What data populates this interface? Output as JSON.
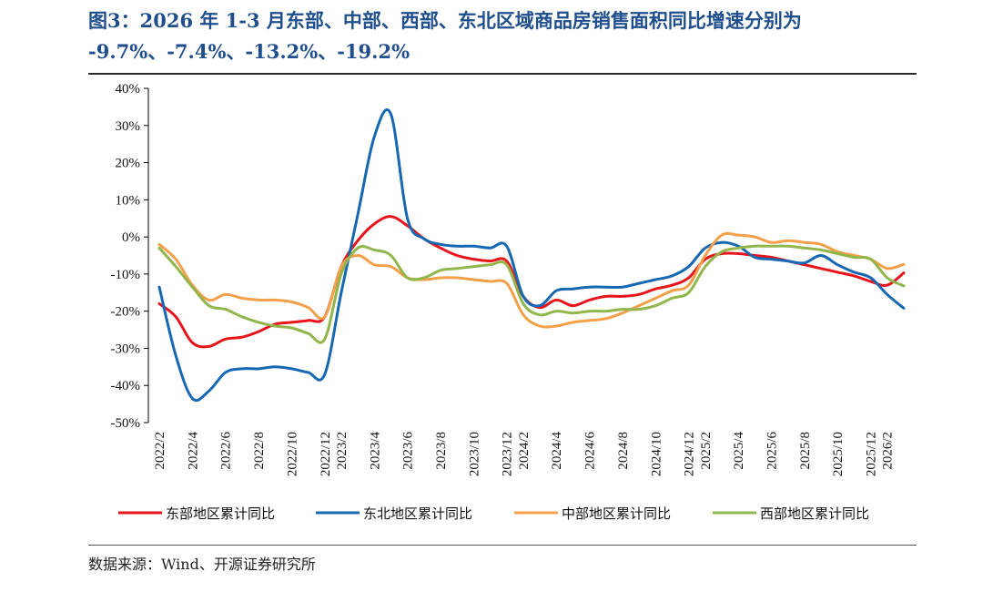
{
  "figure": {
    "title_line1": "图3：2026 年 1-3 月东部、中部、西部、东北区域商品房销售面积同比增速分别为",
    "title_line2": "-9.7%、-7.4%、-13.2%、-19.2%",
    "source": "数据来源：Wind、开源证券研究所"
  },
  "chart_data": {
    "type": "line",
    "title": "2026 年 1-3 月东部、中部、西部、东北区域商品房销售面积同比增速",
    "xlabel": "",
    "ylabel": "",
    "ylim": [
      -50,
      40
    ],
    "y_ticks": [
      40,
      30,
      20,
      10,
      0,
      -10,
      -20,
      -30,
      -40,
      -50
    ],
    "y_tick_labels": [
      "40%",
      "30%",
      "20%",
      "10%",
      "0%",
      "-10%",
      "-20%",
      "-30%",
      "-40%",
      "-50%"
    ],
    "x": [
      "2022/2",
      "2022/3",
      "2022/4",
      "2022/5",
      "2022/6",
      "2022/7",
      "2022/8",
      "2022/9",
      "2022/10",
      "2022/11",
      "2022/12",
      "2023/2",
      "2023/3",
      "2023/4",
      "2023/5",
      "2023/6",
      "2023/7",
      "2023/8",
      "2023/9",
      "2023/10",
      "2023/11",
      "2023/12",
      "2024/2",
      "2024/3",
      "2024/4",
      "2024/5",
      "2024/6",
      "2024/7",
      "2024/8",
      "2024/9",
      "2024/10",
      "2024/11",
      "2024/12",
      "2025/2",
      "2025/3",
      "2025/4",
      "2025/5",
      "2025/6",
      "2025/7",
      "2025/8",
      "2025/9",
      "2025/10",
      "2025/11",
      "2025/12",
      "2026/2",
      "2026/3"
    ],
    "x_tick_labels": [
      "2022/2",
      "2022/4",
      "2022/6",
      "2022/8",
      "2022/10",
      "2022/12",
      "2023/2",
      "2023/4",
      "2023/6",
      "2023/8",
      "2023/10",
      "2023/12",
      "2024/2",
      "2024/4",
      "2024/6",
      "2024/8",
      "2024/10",
      "2024/12",
      "2025/2",
      "2025/4",
      "2025/6",
      "2025/8",
      "2025/10",
      "2025/12",
      "2026/2"
    ],
    "legend_position": "bottom",
    "grid": false,
    "series": [
      {
        "name": "东部地区累计同比",
        "color": "#e8141b",
        "values": [
          -18,
          -21.5,
          -28.5,
          -29.5,
          -27.5,
          -27,
          -25.5,
          -23.5,
          -23,
          -22.5,
          -21.5,
          -8,
          -1,
          3.5,
          5.5,
          3,
          -0.5,
          -3,
          -5,
          -6,
          -6.5,
          -6.5,
          -16,
          -19,
          -17,
          -18.5,
          -17,
          -16,
          -16,
          -15.5,
          -14,
          -13,
          -11,
          -6,
          -4.5,
          -4.5,
          -5,
          -5.5,
          -6.5,
          -7.5,
          -8.5,
          -9.5,
          -10.5,
          -12,
          -13,
          -9.7
        ]
      },
      {
        "name": "东北地区累计同比",
        "color": "#1668b2",
        "values": [
          -13.5,
          -32,
          -43.5,
          -41.5,
          -36.5,
          -35.5,
          -35.5,
          -35,
          -35.5,
          -36.5,
          -37,
          -15,
          6,
          27,
          33,
          5,
          -0.5,
          -2,
          -2.5,
          -2.5,
          -3,
          -2.5,
          -16,
          -18.5,
          -14.5,
          -14,
          -13.5,
          -13.5,
          -13.5,
          -12.5,
          -11.5,
          -10.5,
          -8,
          -3,
          -1.5,
          -2.5,
          -5.5,
          -6,
          -6.5,
          -7,
          -5,
          -7.5,
          -9.5,
          -11,
          -15.5,
          -19.2
        ]
      },
      {
        "name": "中部地区累计同比",
        "color": "#f4a04a",
        "values": [
          -2,
          -6,
          -13,
          -17,
          -15.5,
          -16.5,
          -17,
          -17,
          -17.5,
          -19,
          -21.5,
          -8,
          -5,
          -7.5,
          -8,
          -11,
          -11.5,
          -11,
          -11,
          -11.5,
          -12,
          -12.5,
          -21,
          -24,
          -24,
          -23,
          -22.5,
          -22,
          -20.5,
          -18.5,
          -16.5,
          -14.5,
          -13,
          -5,
          0.5,
          0.5,
          0,
          -1.5,
          -1,
          -1.5,
          -2,
          -4,
          -5,
          -6,
          -8.5,
          -7.4
        ]
      },
      {
        "name": "西部地区累计同比",
        "color": "#92b64b",
        "values": [
          -3,
          -8,
          -13.5,
          -18.5,
          -19.5,
          -21.5,
          -23,
          -24,
          -24.5,
          -26,
          -27.5,
          -10,
          -3,
          -3.5,
          -5,
          -11,
          -11,
          -9,
          -8.5,
          -8,
          -7.5,
          -7.5,
          -18,
          -21,
          -20,
          -20.5,
          -20,
          -20,
          -19.5,
          -19.5,
          -18.5,
          -16.5,
          -15,
          -8,
          -4,
          -3,
          -2.5,
          -2.5,
          -2.5,
          -3,
          -3.5,
          -4.5,
          -5.5,
          -6,
          -11,
          -13.2
        ]
      }
    ]
  }
}
